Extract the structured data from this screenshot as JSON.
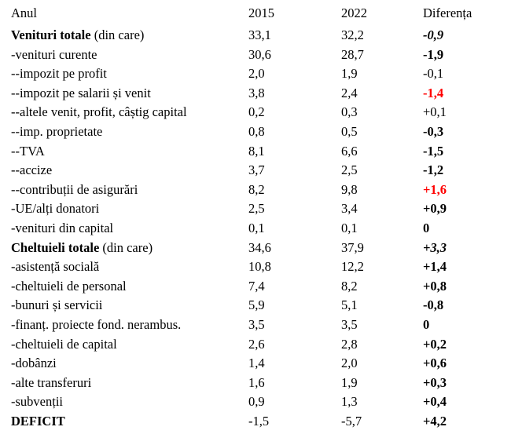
{
  "header": {
    "year_label": "Anul",
    "year1": "2015",
    "year2": "2022",
    "diff": "Diferența"
  },
  "colors": {
    "highlight": "#ff0000",
    "text": "#000000"
  },
  "rows": [
    {
      "label": "Venituri totale",
      "suffix": " (din care)",
      "v2015": "33,1",
      "v2022": "32,2",
      "diff": "-0,9",
      "label_bold": true,
      "diff_bold": true,
      "diff_italic": true,
      "diff_red": false
    },
    {
      "label": "-venituri curente",
      "suffix": "",
      "v2015": "30,6",
      "v2022": "28,7",
      "diff": "-1,9",
      "label_bold": false,
      "diff_bold": true,
      "diff_italic": false,
      "diff_red": false
    },
    {
      "label": "--impozit pe profit",
      "suffix": "",
      "v2015": "2,0",
      "v2022": "1,9",
      "diff": "-0,1",
      "label_bold": false,
      "diff_bold": false,
      "diff_italic": false,
      "diff_red": false
    },
    {
      "label": "--impozit pe salarii și venit",
      "suffix": "",
      "v2015": "3,8",
      "v2022": "2,4",
      "diff": "-1,4",
      "label_bold": false,
      "diff_bold": true,
      "diff_italic": false,
      "diff_red": true
    },
    {
      "label": "--altele venit, profit, câștig capital",
      "suffix": "",
      "v2015": "0,2",
      "v2022": "0,3",
      "diff": "+0,1",
      "label_bold": false,
      "diff_bold": false,
      "diff_italic": false,
      "diff_red": false
    },
    {
      "label": "--imp. proprietate",
      "suffix": "",
      "v2015": "0,8",
      "v2022": "0,5",
      "diff": "-0,3",
      "label_bold": false,
      "diff_bold": true,
      "diff_italic": false,
      "diff_red": false
    },
    {
      "label": "--TVA",
      "suffix": "",
      "v2015": "8,1",
      "v2022": "6,6",
      "diff": "-1,5",
      "label_bold": false,
      "diff_bold": true,
      "diff_italic": false,
      "diff_red": false
    },
    {
      "label": "--accize",
      "suffix": "",
      "v2015": "3,7",
      "v2022": "2,5",
      "diff": "-1,2",
      "label_bold": false,
      "diff_bold": true,
      "diff_italic": false,
      "diff_red": false
    },
    {
      "label": "--contribuții de asigurări",
      "suffix": "",
      "v2015": "8,2",
      "v2022": "9,8",
      "diff": "+1,6",
      "label_bold": false,
      "diff_bold": true,
      "diff_italic": false,
      "diff_red": true
    },
    {
      "label": "-UE/alți donatori",
      "suffix": "",
      "v2015": "2,5",
      "v2022": "3,4",
      "diff": "+0,9",
      "label_bold": false,
      "diff_bold": true,
      "diff_italic": false,
      "diff_red": false
    },
    {
      "label": "-venituri din capital",
      "suffix": "",
      "v2015": "0,1",
      "v2022": "0,1",
      "diff": "0",
      "label_bold": false,
      "diff_bold": true,
      "diff_italic": false,
      "diff_red": false
    },
    {
      "label": "Cheltuieli totale",
      "suffix": " (din care)",
      "v2015": "34,6",
      "v2022": "37,9",
      "diff": "+3,3",
      "label_bold": true,
      "diff_bold": true,
      "diff_italic": true,
      "diff_red": false
    },
    {
      "label": "-asistență socială",
      "suffix": "",
      "v2015": "10,8",
      "v2022": "12,2",
      "diff": "+1,4",
      "label_bold": false,
      "diff_bold": true,
      "diff_italic": false,
      "diff_red": false
    },
    {
      "label": "-cheltuieli de personal",
      "suffix": "",
      "v2015": "7,4",
      "v2022": "8,2",
      "diff": "+0,8",
      "label_bold": false,
      "diff_bold": true,
      "diff_italic": false,
      "diff_red": false
    },
    {
      "label": "-bunuri și servicii",
      "suffix": "",
      "v2015": "5,9",
      "v2022": "5,1",
      "diff": "-0,8",
      "label_bold": false,
      "diff_bold": true,
      "diff_italic": false,
      "diff_red": false
    },
    {
      "label": "-finanț. proiecte fond. nerambus.",
      "suffix": "",
      "v2015": "3,5",
      "v2022": "3,5",
      "diff": "0",
      "label_bold": false,
      "diff_bold": true,
      "diff_italic": false,
      "diff_red": false
    },
    {
      "label": "-cheltuieli de capital",
      "suffix": "",
      "v2015": "2,6",
      "v2022": "2,8",
      "diff": "+0,2",
      "label_bold": false,
      "diff_bold": true,
      "diff_italic": false,
      "diff_red": false
    },
    {
      "label": "-dobânzi",
      "suffix": "",
      "v2015": "1,4",
      "v2022": "2,0",
      "diff": "+0,6",
      "label_bold": false,
      "diff_bold": true,
      "diff_italic": false,
      "diff_red": false
    },
    {
      "label": "-alte transferuri",
      "suffix": "",
      "v2015": "1,6",
      "v2022": "1,9",
      "diff": "+0,3",
      "label_bold": false,
      "diff_bold": true,
      "diff_italic": false,
      "diff_red": false
    },
    {
      "label": "-subvenții",
      "suffix": "",
      "v2015": "0,9",
      "v2022": "1,3",
      "diff": "+0,4",
      "label_bold": false,
      "diff_bold": true,
      "diff_italic": false,
      "diff_red": false
    },
    {
      "label": "DEFICIT",
      "suffix": "",
      "v2015": "-1,5",
      "v2022": "-5,7",
      "diff": "+4,2",
      "label_bold": true,
      "diff_bold": true,
      "diff_italic": false,
      "diff_red": false
    }
  ]
}
